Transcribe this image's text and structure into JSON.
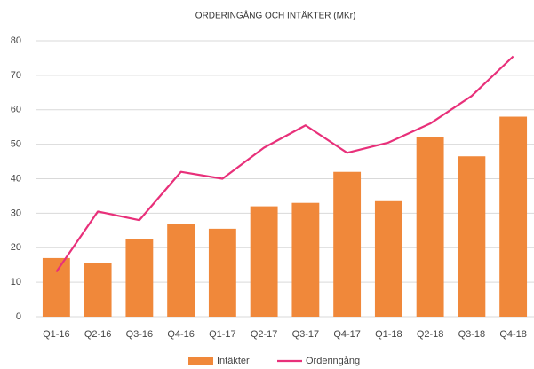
{
  "chart_data": {
    "type": "bar",
    "title": "ORDERINGÅNG OCH INTÄKTER (MKr)",
    "categories": [
      "Q1-16",
      "Q2-16",
      "Q3-16",
      "Q4-16",
      "Q1-17",
      "Q2-17",
      "Q3-17",
      "Q4-17",
      "Q1-18",
      "Q2-18",
      "Q3-18",
      "Q4-18"
    ],
    "series": [
      {
        "name": "Intäkter",
        "type": "bar",
        "color": "#f0883a",
        "values": [
          17,
          15.5,
          22.5,
          27,
          25.5,
          32,
          33,
          42,
          33.5,
          52,
          46.5,
          58
        ]
      },
      {
        "name": "Orderingång",
        "type": "line",
        "color": "#e8307a",
        "values": [
          13,
          30.5,
          28,
          42,
          40,
          49,
          55.5,
          47.5,
          50.5,
          56,
          64,
          75.5
        ]
      }
    ],
    "ylim": [
      0,
      80
    ],
    "yticks": [
      0,
      10,
      20,
      30,
      40,
      50,
      60,
      70,
      80
    ],
    "grid": true,
    "legend": "bottom"
  }
}
